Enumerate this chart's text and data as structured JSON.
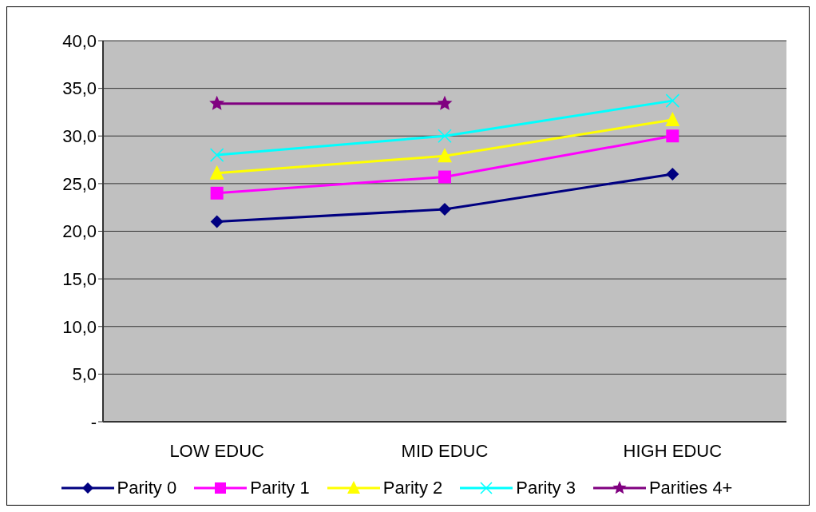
{
  "chart_data": {
    "type": "line",
    "categories": [
      "LOW EDUC",
      "MID EDUC",
      "HIGH EDUC"
    ],
    "series": [
      {
        "name": "Parity 0",
        "color": "#000080",
        "marker": "diamond",
        "values": [
          21.0,
          22.3,
          26.0
        ]
      },
      {
        "name": "Parity 1",
        "color": "#ff00ff",
        "marker": "square",
        "values": [
          24.0,
          25.7,
          30.0
        ]
      },
      {
        "name": "Parity 2",
        "color": "#ffff00",
        "marker": "triangle",
        "values": [
          26.1,
          27.9,
          31.7
        ]
      },
      {
        "name": "Parity 3",
        "color": "#00ffff",
        "marker": "cross",
        "values": [
          28.0,
          30.0,
          33.7
        ]
      },
      {
        "name": "Parities 4+",
        "color": "#800080",
        "marker": "star",
        "values": [
          33.4,
          33.4,
          null
        ]
      }
    ],
    "ylim": [
      0,
      40
    ],
    "yticks": [
      {
        "value": 0,
        "label": "-"
      },
      {
        "value": 5,
        "label": "5,0"
      },
      {
        "value": 10,
        "label": "10,0"
      },
      {
        "value": 15,
        "label": "15,0"
      },
      {
        "value": 20,
        "label": "20,0"
      },
      {
        "value": 25,
        "label": "25,0"
      },
      {
        "value": 30,
        "label": "30,0"
      },
      {
        "value": 35,
        "label": "35,0"
      },
      {
        "value": 40,
        "label": "40,0"
      }
    ],
    "grid": "y",
    "legend": "bottom",
    "line_style": "solid"
  }
}
